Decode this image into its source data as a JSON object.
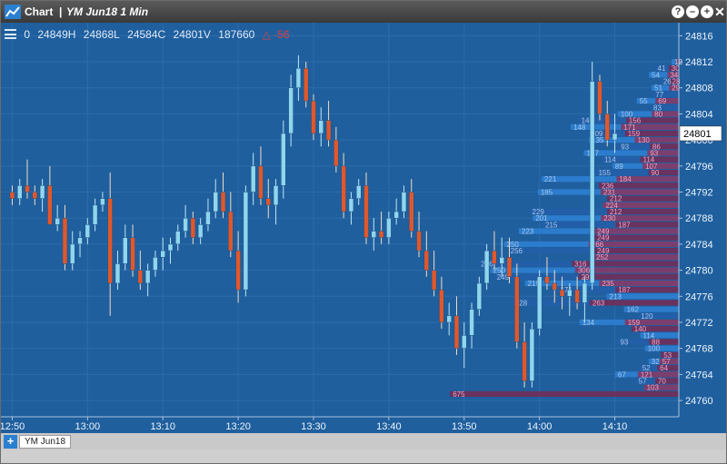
{
  "window": {
    "app_title": "Chart",
    "separator": "|",
    "symbol_title": "YM Jun18 1 Min",
    "buttons": {
      "help": "?",
      "minimize": "–",
      "maximize": "+",
      "close": "✕"
    }
  },
  "hud": {
    "open": "0",
    "high": "24849H",
    "low": "24868L",
    "close": "24584C",
    "last": "24801V",
    "volume": "187660",
    "change": "△ -56"
  },
  "tabs": {
    "add": "+",
    "items": [
      "YM Jun18"
    ]
  },
  "colors": {
    "background": "#1f5f9e",
    "grid": "#2d6cab",
    "candle_up": "#8fd6ee",
    "candle_down": "#e0582c",
    "profile_bid": "#2e80d2",
    "profile_bid_dark": "#235fa8",
    "profile_ask": "#803d6c",
    "profile_ask_dark": "#6e2f5c",
    "profile_bid_text": "#a9c8ea",
    "profile_ask_text": "#f0a5c5",
    "up_text": "#bfe7f5"
  },
  "chart_data": {
    "type": "candlestick",
    "xlabel": "",
    "ylabel": "",
    "y_ticks": [
      24760,
      24764,
      24768,
      24772,
      24776,
      24780,
      24784,
      24788,
      24792,
      24796,
      24800,
      24804,
      24808,
      24812,
      24816
    ],
    "ylim": [
      24757.5,
      24818
    ],
    "x_ticks": [
      "12:50",
      "13:00",
      "13:10",
      "13:20",
      "13:30",
      "13:40",
      "13:50",
      "14:00",
      "14:10"
    ],
    "x_range_minutes": [
      -1.5,
      88.5
    ],
    "last_price": 24801,
    "last_price_label": "24801",
    "candles": [
      [
        0,
        24792,
        24793,
        24790,
        24791
      ],
      [
        1,
        24791,
        24794,
        24790,
        24793
      ],
      [
        2,
        24793,
        24797,
        24791,
        24792
      ],
      [
        3,
        24792,
        24793,
        24790,
        24791
      ],
      [
        4,
        24791,
        24794,
        24789,
        24793
      ],
      [
        5,
        24793,
        24796,
        24787,
        24787
      ],
      [
        6,
        24787,
        24790,
        24786,
        24788
      ],
      [
        7,
        24788,
        24790,
        24780,
        24781
      ],
      [
        8,
        24781,
        24786,
        24780,
        24784
      ],
      [
        9,
        24784,
        24786,
        24782,
        24785
      ],
      [
        10,
        24785,
        24788,
        24784,
        24787
      ],
      [
        11,
        24787,
        24791,
        24786,
        24790
      ],
      [
        12,
        24790,
        24792,
        24789,
        24791
      ],
      [
        13,
        24791,
        24795,
        24773,
        24778
      ],
      [
        14,
        24778,
        24783,
        24777,
        24781
      ],
      [
        15,
        24781,
        24787,
        24780,
        24785
      ],
      [
        16,
        24785,
        24787,
        24779,
        24780
      ],
      [
        17,
        24780,
        24783,
        24777,
        24778
      ],
      [
        18,
        24778,
        24781,
        24776,
        24780
      ],
      [
        19,
        24780,
        24783,
        24779,
        24782
      ],
      [
        20,
        24782,
        24785,
        24780,
        24783
      ],
      [
        21,
        24783,
        24785,
        24781,
        24784
      ],
      [
        22,
        24784,
        24787,
        24783,
        24786
      ],
      [
        23,
        24786,
        24790,
        24785,
        24788
      ],
      [
        24,
        24788,
        24789,
        24784,
        24785
      ],
      [
        25,
        24785,
        24788,
        24784,
        24787
      ],
      [
        26,
        24787,
        24791,
        24786,
        24789
      ],
      [
        27,
        24789,
        24794,
        24788,
        24792
      ],
      [
        28,
        24792,
        24795,
        24788,
        24789
      ],
      [
        29,
        24789,
        24792,
        24782,
        24783
      ],
      [
        30,
        24783,
        24786,
        24775,
        24777
      ],
      [
        31,
        24777,
        24793,
        24776,
        24792
      ],
      [
        32,
        24792,
        24798,
        24790,
        24796
      ],
      [
        33,
        24796,
        24799,
        24790,
        24791
      ],
      [
        34,
        24791,
        24794,
        24788,
        24790
      ],
      [
        35,
        24790,
        24794,
        24787,
        24793
      ],
      [
        36,
        24793,
        24803,
        24791,
        24801
      ],
      [
        37,
        24801,
        24810,
        24799,
        24808
      ],
      [
        38,
        24808,
        24813,
        24806,
        24811
      ],
      [
        39,
        24811,
        24812,
        24805,
        24806
      ],
      [
        40,
        24806,
        24807,
        24800,
        24801
      ],
      [
        41,
        24801,
        24805,
        24799,
        24803
      ],
      [
        42,
        24803,
        24806,
        24799,
        24800
      ],
      [
        43,
        24800,
        24802,
        24795,
        24796
      ],
      [
        44,
        24796,
        24798,
        24788,
        24789
      ],
      [
        45,
        24789,
        24792,
        24787,
        24791
      ],
      [
        46,
        24791,
        24794,
        24790,
        24793
      ],
      [
        47,
        24793,
        24795,
        24784,
        24785
      ],
      [
        48,
        24785,
        24788,
        24783,
        24786
      ],
      [
        49,
        24786,
        24789,
        24784,
        24785
      ],
      [
        50,
        24785,
        24789,
        24784,
        24788
      ],
      [
        51,
        24788,
        24791,
        24787,
        24789
      ],
      [
        52,
        24789,
        24793,
        24788,
        24792
      ],
      [
        53,
        24792,
        24794,
        24785,
        24786
      ],
      [
        54,
        24786,
        24789,
        24782,
        24783
      ],
      [
        55,
        24783,
        24786,
        24779,
        24780
      ],
      [
        56,
        24780,
        24783,
        24776,
        24777
      ],
      [
        57,
        24777,
        24779,
        24771,
        24772
      ],
      [
        58,
        24772,
        24775,
        24770,
        24773
      ],
      [
        59,
        24773,
        24776,
        24767,
        24768
      ],
      [
        60,
        24768,
        24772,
        24765,
        24770
      ],
      [
        61,
        24770,
        24775,
        24768,
        24774
      ],
      [
        62,
        24774,
        24779,
        24773,
        24778
      ],
      [
        63,
        24778,
        24784,
        24777,
        24783
      ],
      [
        64,
        24783,
        24786,
        24780,
        24781
      ],
      [
        65,
        24781,
        24785,
        24779,
        24782
      ],
      [
        66,
        24782,
        24785,
        24778,
        24779
      ],
      [
        67,
        24779,
        24781,
        24768,
        24769
      ],
      [
        68,
        24769,
        24772,
        24762,
        24763
      ],
      [
        69,
        24763,
        24772,
        24762,
        24771
      ],
      [
        70,
        24771,
        24780,
        24770,
        24779
      ],
      [
        71,
        24779,
        24782,
        24777,
        24778
      ],
      [
        72,
        24778,
        24780,
        24775,
        24777
      ],
      [
        73,
        24777,
        24779,
        24774,
        24776
      ],
      [
        74,
        24776,
        24778,
        24773,
        24777
      ],
      [
        75,
        24777,
        24779,
        24774,
        24775
      ],
      [
        76,
        24775,
        24779,
        24772,
        24778
      ],
      [
        77,
        24778,
        24812,
        24777,
        24809
      ],
      [
        78,
        24809,
        24810,
        24803,
        24804
      ],
      [
        79,
        24804,
        24806,
        24799,
        24800
      ],
      [
        80,
        24800,
        24804,
        24798,
        24801
      ]
    ],
    "profile_x_range": [
      740,
      2000
    ],
    "volume_profile": [
      {
        "price": 24812,
        "bid": 12,
        "ask": 9
      },
      {
        "price": 24811,
        "bid": 41,
        "ask": 30
      },
      {
        "price": 24810,
        "bid": 54,
        "ask": 34
      },
      {
        "price": 24809,
        "bid": 26,
        "ask": 28
      },
      {
        "price": 24808,
        "bid": 51,
        "ask": 29
      },
      {
        "price": 24807,
        "bid": 77,
        "ask": 0
      },
      {
        "price": 24806,
        "bid": 55,
        "ask": 69
      },
      {
        "price": 24805,
        "bid": 83,
        "ask": 0
      },
      {
        "price": 24804,
        "bid": 100,
        "ask": 80
      },
      {
        "price": 24803,
        "bid": 140,
        "ask": 156
      },
      {
        "price": 24802,
        "bid": 148,
        "ask": 171
      },
      {
        "price": 24801,
        "bid": 109,
        "ask": 159
      },
      {
        "price": 24800,
        "bid": 135,
        "ask": 130
      },
      {
        "price": 24799,
        "bid": 93,
        "ask": 86
      },
      {
        "price": 24798,
        "bid": 187,
        "ask": 93
      },
      {
        "price": 24797,
        "bid": 114,
        "ask": 114
      },
      {
        "price": 24796,
        "bid": 89,
        "ask": 107
      },
      {
        "price": 24795,
        "bid": 155,
        "ask": 90
      },
      {
        "price": 24794,
        "bid": 221,
        "ask": 184
      },
      {
        "price": 24793,
        "bid": 0,
        "ask": 236
      },
      {
        "price": 24792,
        "bid": 185,
        "ask": 231
      },
      {
        "price": 24791,
        "bid": 0,
        "ask": 212
      },
      {
        "price": 24790,
        "bid": 0,
        "ask": 224
      },
      {
        "price": 24789,
        "bid": 229,
        "ask": 212
      },
      {
        "price": 24788,
        "bid": 201,
        "ask": 230
      },
      {
        "price": 24787,
        "bid": 215,
        "ask": 187
      },
      {
        "price": 24786,
        "bid": 223,
        "ask": 249
      },
      {
        "price": 24785,
        "bid": 0,
        "ask": 249
      },
      {
        "price": 24784,
        "bid": 250,
        "ask": 266
      },
      {
        "price": 24783,
        "bid": 256,
        "ask": 249
      },
      {
        "price": 24782,
        "bid": 0,
        "ask": 252
      },
      {
        "price": 24781,
        "bid": 276,
        "ask": 316
      },
      {
        "price": 24780,
        "bid": 250,
        "ask": 306
      },
      {
        "price": 24779,
        "bid": 249,
        "ask": 296
      },
      {
        "price": 24778,
        "bid": 219,
        "ask": 235
      },
      {
        "price": 24777,
        "bid": 171,
        "ask": 187
      },
      {
        "price": 24776,
        "bid": 213,
        "ask": 0
      },
      {
        "price": 24775,
        "bid": 228,
        "ask": 263
      },
      {
        "price": 24774,
        "bid": 162,
        "ask": 0
      },
      {
        "price": 24773,
        "bid": 120,
        "ask": 0
      },
      {
        "price": 24772,
        "bid": 134,
        "ask": 159
      },
      {
        "price": 24771,
        "bid": 0,
        "ask": 140
      },
      {
        "price": 24770,
        "bid": 114,
        "ask": 0
      },
      {
        "price": 24769,
        "bid": 93,
        "ask": 88
      },
      {
        "price": 24768,
        "bid": 100,
        "ask": 0
      },
      {
        "price": 24767,
        "bid": 0,
        "ask": 53
      },
      {
        "price": 24766,
        "bid": 32,
        "ask": 57
      },
      {
        "price": 24765,
        "bid": 52,
        "ask": 64
      },
      {
        "price": 24764,
        "bid": 67,
        "ask": 121
      },
      {
        "price": 24763,
        "bid": 57,
        "ask": 70
      },
      {
        "price": 24762,
        "bid": 0,
        "ask": 103
      },
      {
        "price": 24761,
        "bid": 0,
        "ask": 675
      }
    ]
  }
}
